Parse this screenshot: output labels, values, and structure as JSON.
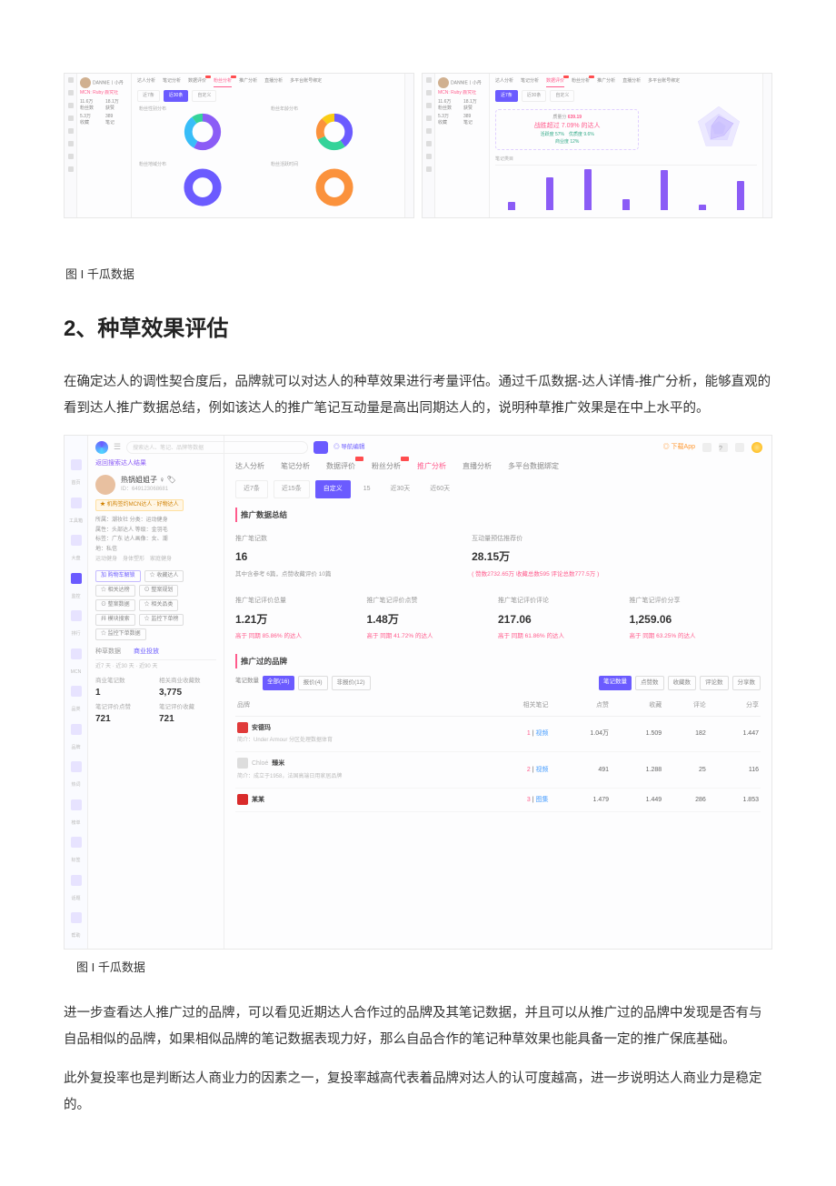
{
  "colors": {
    "accent_purple": "#6b5bff",
    "accent_pink": "#ff5b8c",
    "accent_violet": "#8b5cf6",
    "accent_cyan": "#38bdf8",
    "accent_green": "#34d399",
    "accent_orange": "#fb923c",
    "accent_yellow": "#facc15",
    "badge_red": "#ff4d4f",
    "grid": "#e8e8e8",
    "text": "#333333",
    "muted": "#999999"
  },
  "top_shots": {
    "common": {
      "profile_name": "DANNIE丨小丹",
      "mcn_line": "MCN: Ruby 颜究社",
      "tabs": [
        "达人分析",
        "笔记分析",
        "数据评价",
        "粉丝分析",
        "推广分析",
        "直播分析",
        "多平台账号绑定"
      ],
      "tab_new_indices": [
        2,
        3
      ],
      "side_kpis": [
        {
          "label": "粉丝数",
          "value": "11.6万"
        },
        {
          "label": "获赞",
          "value": "18.1万"
        },
        {
          "label": "收藏",
          "value": "5.3万"
        },
        {
          "label": "笔记",
          "value": "389"
        }
      ]
    },
    "left": {
      "active_tab": "粉丝分析",
      "btns": [
        "近7条",
        "近30条",
        "自定义"
      ],
      "btn_active": 1,
      "donuts": [
        {
          "label": "粉丝性别分布",
          "segments": [
            {
              "color": "#8b5cf6",
              "pct": 58
            },
            {
              "color": "#38bdf8",
              "pct": 32
            },
            {
              "color": "#34d399",
              "pct": 10
            }
          ],
          "thickness": 10
        },
        {
          "label": "粉丝年龄分布",
          "segments": [
            {
              "color": "#6b5bff",
              "pct": 40
            },
            {
              "color": "#34d399",
              "pct": 28
            },
            {
              "color": "#fb923c",
              "pct": 20
            },
            {
              "color": "#facc15",
              "pct": 12
            }
          ],
          "thickness": 10
        },
        {
          "label": "粉丝地域分布",
          "segments": [
            {
              "color": "#6b5bff",
              "pct": 100
            }
          ],
          "thickness": 11
        },
        {
          "label": "粉丝活跃时间",
          "segments": [
            {
              "color": "#fb923c",
              "pct": 100
            }
          ],
          "thickness": 11
        }
      ]
    },
    "right": {
      "active_tab": "数据评价",
      "metric_box": {
        "line1_label": "质量分",
        "line1_value": "639.19",
        "line2": "战胜超过 7.09% 的达人",
        "line3_a": "活跃度 57%",
        "line3_b": "优质度 9.6%",
        "line4": "商业度 12%"
      },
      "radar": {
        "axes": 5,
        "ring_colors": [
          "#ece9ff",
          "#e0dbff",
          "#d3ccff"
        ],
        "value_pct": [
          55,
          70,
          40,
          60,
          35
        ],
        "fill": "#c4b5fd",
        "fill_opacity": 0.5
      },
      "bars": {
        "label": "笔记类目",
        "color": "#8b5cf6",
        "values": [
          12,
          48,
          60,
          15,
          58,
          8,
          42
        ],
        "ymax": 60
      }
    }
  },
  "caption1": "图 I 千瓜数据",
  "heading": "2、种草效果评估",
  "para1": "在确定达人的调性契合度后，品牌就可以对达人的种草效果进行考量评估。通过千瓜数据-达人详情-推广分析，能够直观的看到达人推广数据总结，例如该达人的推广笔记互动量是高出同期达人的，说明种草推广效果是在中上水平的。",
  "dash": {
    "search_placeholder": "搜索达人、笔记、品牌等数据",
    "search_btn_icon": "search-icon",
    "expand_label": "◎ 导航编辑",
    "download_label": "◎ 下载App",
    "leftnav": [
      {
        "label": "首页"
      },
      {
        "label": "工具箱"
      },
      {
        "label": "大盘"
      },
      {
        "label": "监控",
        "active": true
      },
      {
        "label": "排行"
      },
      {
        "label": "MCN"
      },
      {
        "label": "品类"
      },
      {
        "label": "品牌"
      },
      {
        "label": "热词"
      },
      {
        "label": "榜单"
      },
      {
        "label": "标签"
      },
      {
        "label": "话题"
      },
      {
        "label": "帮助"
      }
    ],
    "crumb": "返回搜索达人结果",
    "profile": {
      "name": "热锅姐姐子 ♀ 🏷",
      "id": "ID：649123068681"
    },
    "pill": "★ 机构签约MCN达人 · 好物达人",
    "info_lines": [
      "所属：潮妆社    分类：运动健身",
      "属性：头部达人    等级：金羽毛",
      "标签：广东    达人画像：女、潮",
      "地：私信"
    ],
    "tag_row": [
      "运动健身",
      "身体塑形",
      "家庭健身"
    ],
    "action_chips": [
      {
        "text": "加 购物车解锁",
        "type": "blue"
      },
      {
        "text": "☆ 收藏达人",
        "type": "out"
      },
      {
        "text": "☆ 相关达榜",
        "type": "out"
      },
      {
        "text": "⊙ 整案规划",
        "type": "out"
      },
      {
        "text": "⊙ 整案数据",
        "type": "out"
      },
      {
        "text": "☆ 相关品类",
        "type": "out"
      },
      {
        "text": "幷 模块搜索",
        "type": "out"
      },
      {
        "text": "☆ 监控下单榜",
        "type": "out"
      },
      {
        "text": "☆ 监控下单数据",
        "type": "out"
      }
    ],
    "sum_tabs": [
      "种草数据",
      "商业投放"
    ],
    "sum_tabs_active": 1,
    "sum_sub": "近7 天 · 近30 天 · 近90 天",
    "sum_items": [
      {
        "label": "商业笔记数",
        "value": "1"
      },
      {
        "label": "相关商业收藏数",
        "value": "3,775"
      },
      {
        "label": "笔记评价点赞",
        "value": "721"
      },
      {
        "label": "笔记评价收藏",
        "value": "721"
      }
    ],
    "main_tabs": [
      "达人分析",
      "笔记分析",
      "数据评价",
      "粉丝分析",
      "推广分析",
      "直播分析",
      "多平台数据绑定"
    ],
    "main_tab_new_indices": [
      2,
      3
    ],
    "main_tab_active": 4,
    "subtabs": [
      "近7条",
      "近15条",
      "自定义"
    ],
    "subtab_extra": [
      "15",
      "近30天",
      "近60天"
    ],
    "subtab_active": 2,
    "section1_title": "推广数据总结",
    "stats_row1": [
      {
        "label": "推广笔记数",
        "value": "16",
        "detail": "其中含参考 6篇，点赞收藏评价 10篇"
      },
      {
        "label": "互动量预估推荐价",
        "value": "28.15万",
        "detail": "( 赞数2732.65万 收藏总数595 评论总数777.5万 )",
        "detail_color": "pink"
      }
    ],
    "stats_row2": [
      {
        "label": "推广笔记评价总量",
        "value": "1.21万",
        "detail": "高于 同期 85.86% 的达人"
      },
      {
        "label": "推广笔记评价点赞",
        "value": "1.48万",
        "detail": "高于 同期 41.72% 的达人"
      },
      {
        "label": "推广笔记评价评论",
        "value": "217.06",
        "detail": "高于 同期 61.86% 的达人"
      },
      {
        "label": "推广笔记评价分享",
        "value": "1,259.06",
        "detail": "高于 同期 63.25% 的达人"
      }
    ],
    "section2_title": "推广过的品牌",
    "filter_left": [
      {
        "text": "笔记数量",
        "type": "plain"
      },
      {
        "text": "全部(16)",
        "type": "fill"
      },
      {
        "text": "报价(4)",
        "type": "out"
      },
      {
        "text": "非报价(12)",
        "type": "out"
      }
    ],
    "filter_right": [
      {
        "text": "笔记数量",
        "type": "fill"
      },
      {
        "text": "点赞数",
        "type": "out"
      },
      {
        "text": "收藏数",
        "type": "out"
      },
      {
        "text": "评论数",
        "type": "out"
      },
      {
        "text": "分享数",
        "type": "out"
      }
    ],
    "table": {
      "columns": [
        "品牌",
        "相关笔记",
        "点赞",
        "收藏",
        "评论",
        "分享"
      ],
      "rows": [
        {
          "rank": 1,
          "logo_color": "#e03a3a",
          "name": "安德玛",
          "sub": "简介：Under Armour 分区处理数据体育",
          "note_type": "视频",
          "like": "1.04万",
          "collect": "1.509",
          "comment": "182",
          "share": "1.447"
        },
        {
          "rank": 2,
          "logo_color": "#dddddd",
          "name": "臻米",
          "name_prefix": "Chloé",
          "sub": "简介：成立于1958，法国高端日用家居品牌",
          "note_type": "视频",
          "like": "491",
          "collect": "1.288",
          "comment": "25",
          "share": "116"
        },
        {
          "rank": 3,
          "logo_color": "#d92b2b",
          "name": "某某",
          "sub": "",
          "note_type": "图集",
          "like": "1.479",
          "collect": "1.449",
          "comment": "286",
          "share": "1.853"
        }
      ]
    }
  },
  "caption2": "图 I 千瓜数据",
  "para2": "进一步查看达人推广过的品牌，可以看见近期达人合作过的品牌及其笔记数据，并且可以从推广过的品牌中发现是否有与自品相似的品牌，如果相似品牌的笔记数据表现力好，那么自品合作的笔记种草效果也能具备一定的推广保底基础。",
  "para3": "此外复投率也是判断达人商业力的因素之一，复投率越高代表着品牌对达人的认可度越高，进一步说明达人商业力是稳定的。"
}
